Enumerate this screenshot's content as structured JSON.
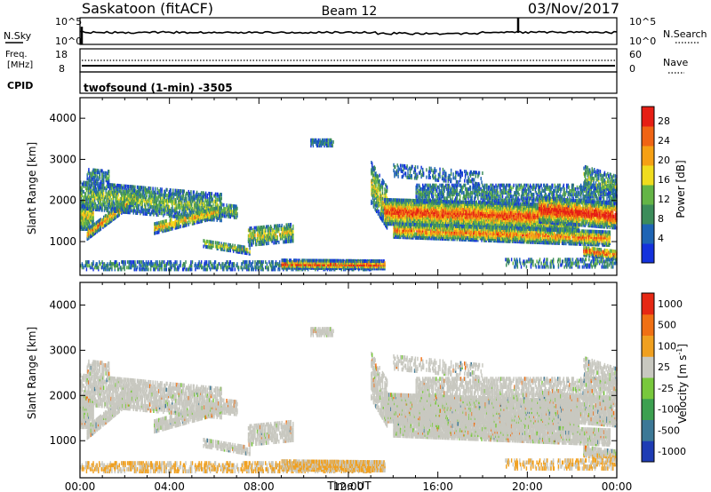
{
  "header": {
    "title_left": "Saskatoon (fitACF)",
    "title_center": "Beam 12",
    "title_right": "03/Nov/2017"
  },
  "noise_panel": {
    "left_label": "N.Sky",
    "right_label": "N.Search",
    "left_ticks": [
      "10^5",
      "10^0"
    ],
    "right_ticks": [
      "10^5",
      "10^0"
    ]
  },
  "freq_panel": {
    "left_label_top": "Freq.",
    "left_label_bottom": "[MHz]",
    "left_ticks": [
      "18",
      "8"
    ],
    "right_label": "Nave",
    "right_ticks": [
      "60",
      "0"
    ]
  },
  "cpid": {
    "label": "CPID",
    "value": "twofsound (1-min) -3505"
  },
  "colors": {
    "power_scale": [
      "#1432dc",
      "#1e64b4",
      "#3c8c5a",
      "#64b446",
      "#f0dc1e",
      "#f5a014",
      "#f06414",
      "#e61e14"
    ],
    "velocity_scale": [
      "#1e3cb4",
      "#3c7896",
      "#3ca050",
      "#78c83c",
      "#c8c8c0",
      "#f0a020",
      "#f07014",
      "#e62814"
    ]
  },
  "chart_data": [
    {
      "type": "heatmap",
      "name": "power",
      "xlabel": "Time UT",
      "ylabel": "Slant Range [km]",
      "ylim": [
        180,
        4500
      ],
      "yticks": [
        "1000",
        "2000",
        "3000",
        "4000"
      ],
      "colorbar_label": "Power [dB]",
      "colorbar_ticks": [
        "28",
        "24",
        "20",
        "16",
        "12",
        "8",
        "4"
      ],
      "clim": [
        0,
        32
      ]
    },
    {
      "type": "heatmap",
      "name": "velocity",
      "xlabel": "Time UT",
      "ylabel": "Slant Range [km]",
      "ylim": [
        180,
        4500
      ],
      "yticks": [
        "1000",
        "2000",
        "3000",
        "4000"
      ],
      "colorbar_label": "Velocity [m s",
      "colorbar_label_sup": "-1",
      "colorbar_label_end": "]",
      "colorbar_ticks": [
        "1000",
        "500",
        "100",
        "25",
        "-25",
        "-100",
        "-500",
        "-1000"
      ]
    }
  ],
  "xaxis": {
    "label": "Time UT",
    "ticks": [
      "00:00",
      "04:00",
      "08:00",
      "12:00",
      "16:00",
      "20:00",
      "00:00"
    ]
  }
}
